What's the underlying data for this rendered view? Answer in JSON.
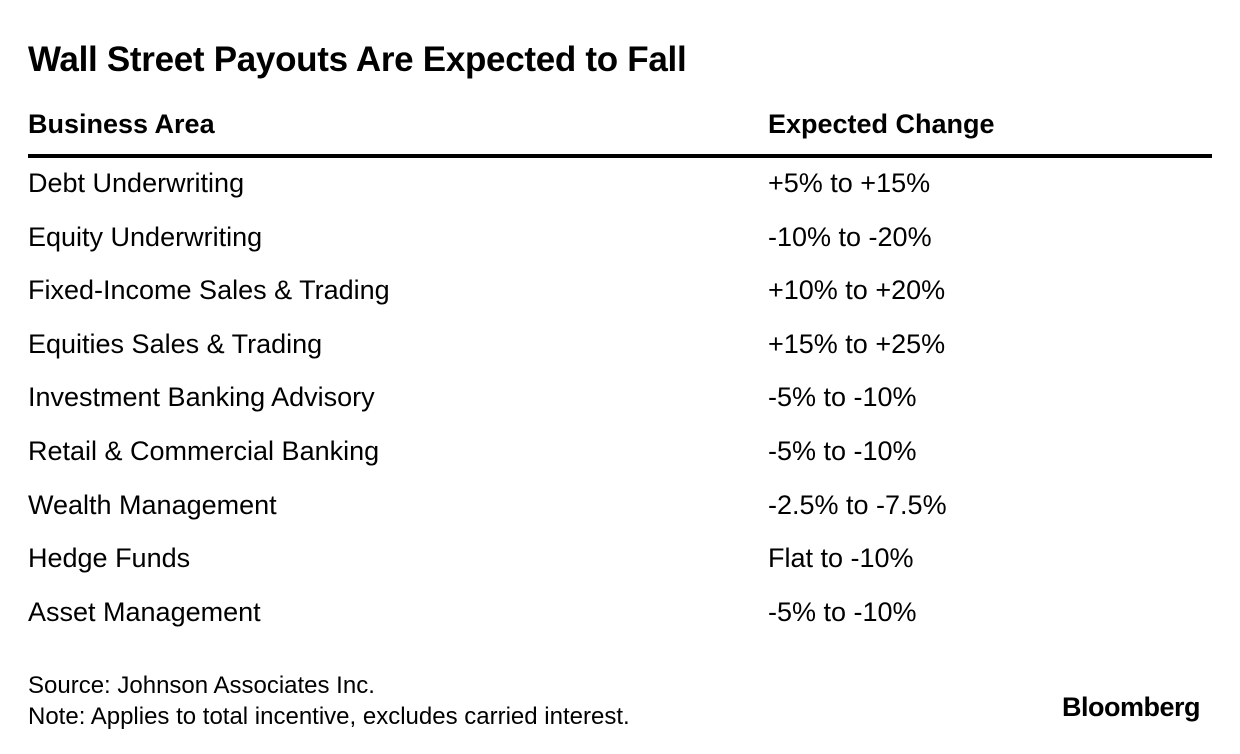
{
  "chart_data": {
    "type": "table",
    "title": "Wall Street Payouts Are Expected to Fall",
    "columns": [
      "Business Area",
      "Expected Change"
    ],
    "rows": [
      [
        "Debt Underwriting",
        "+5% to +15%"
      ],
      [
        "Equity Underwriting",
        "-10% to -20%"
      ],
      [
        "Fixed-Income Sales & Trading",
        "+10% to +20%"
      ],
      [
        "Equities Sales & Trading",
        "+15% to +25%"
      ],
      [
        "Investment Banking Advisory",
        "-5% to -10%"
      ],
      [
        "Retail & Commercial Banking",
        "-5% to -10%"
      ],
      [
        "Wealth Management",
        "-2.5% to -7.5%"
      ],
      [
        "Hedge Funds",
        "Flat to -10%"
      ],
      [
        "Asset Management",
        "-5% to -10%"
      ]
    ],
    "source": "Source: Johnson Associates Inc.",
    "note": "Note: Applies to total incentive, excludes carried interest."
  },
  "logo_text": "Bloomberg"
}
